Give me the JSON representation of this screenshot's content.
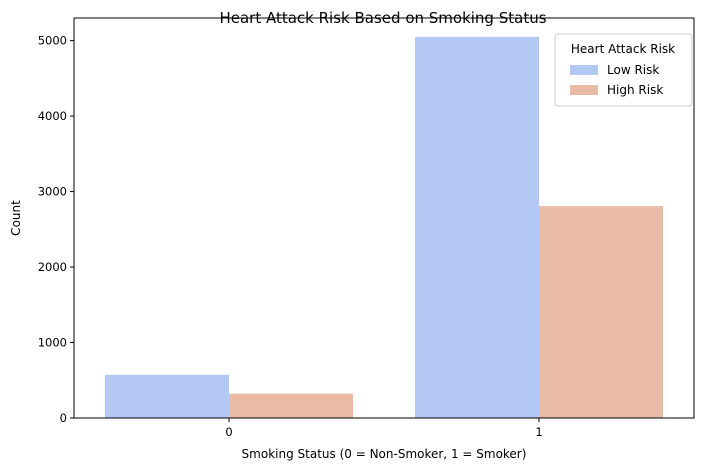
{
  "chart_data": {
    "type": "bar",
    "title": "Heart Attack Risk Based on Smoking Status",
    "xlabel": "Smoking Status (0 = Non-Smoker, 1 = Smoker)",
    "ylabel": "Count",
    "categories": [
      "0",
      "1"
    ],
    "series": [
      {
        "name": "Low Risk",
        "values": [
          573,
          5050
        ],
        "color": "#b3c9f4"
      },
      {
        "name": "High Risk",
        "values": [
          323,
          2807
        ],
        "color": "#eabba4"
      }
    ],
    "ylim": [
      0,
      5300
    ],
    "yticks": [
      0,
      1000,
      2000,
      3000,
      4000,
      5000
    ],
    "grid": false,
    "legend": {
      "title": "Heart Attack Risk",
      "position": "top-right"
    }
  }
}
